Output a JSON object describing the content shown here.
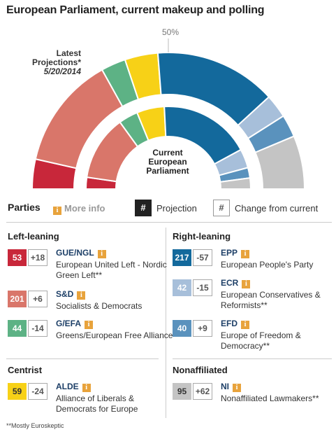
{
  "title": "European Parliament, current makeup and polling",
  "fifty_label": "50%",
  "latest_projection": {
    "line1": "Latest",
    "line2": "Projections*",
    "date": "5/20/2014"
  },
  "current_label": {
    "line1": "Current",
    "line2": "European",
    "line3": "Parliament"
  },
  "legend": {
    "parties_label": "Parties",
    "more_info": "More info",
    "info_glyph": "i",
    "projection_symbol": "#",
    "projection_label": "Projection",
    "change_symbol": "#",
    "change_label": "Change from current"
  },
  "sections": {
    "left": "Left-leaning",
    "right": "Right-leaning",
    "centrist": "Centrist",
    "nonaffiliated": "Nonaffiliated"
  },
  "footnote": "**Mostly Euroskeptic",
  "chart_data": {
    "type": "semicircle-parliament",
    "rings": [
      "Latest Projections",
      "Current European Parliament"
    ],
    "order": [
      "GUE/NGL",
      "S&D",
      "G/EFA",
      "ALDE",
      "EPP",
      "ECR",
      "EFD",
      "NI"
    ],
    "colors": {
      "GUE/NGL": "#c8273a",
      "S&D": "#d9766a",
      "G/EFA": "#5db285",
      "ALDE": "#f7d117",
      "EPP": "#13699c",
      "ECR": "#a7bfda",
      "EFD": "#5a92bd",
      "NI": "#c4c4c4"
    },
    "projection": {
      "GUE/NGL": 53,
      "S&D": 201,
      "G/EFA": 44,
      "ALDE": 59,
      "EPP": 217,
      "ECR": 42,
      "EFD": 40,
      "NI": 95
    },
    "change_from_current": {
      "GUE/NGL": "+18",
      "S&D": "+6",
      "G/EFA": "-14",
      "ALDE": "-24",
      "EPP": "-57",
      "ECR": "-15",
      "EFD": "+9",
      "NI": "+62"
    }
  },
  "parties": [
    {
      "id": "GUE/NGL",
      "projection": "53",
      "change": "+18",
      "abbr": "GUE/NGL",
      "full": "European United Left - Nordic Green Left**",
      "color": "#c8273a"
    },
    {
      "id": "S&D",
      "projection": "201",
      "change": "+6",
      "abbr": "S&D",
      "full": "Socialists & Democrats",
      "color": "#d9766a"
    },
    {
      "id": "G/EFA",
      "projection": "44",
      "change": "-14",
      "abbr": "G/EFA",
      "full": "Greens/European Free Alliance",
      "color": "#5db285"
    },
    {
      "id": "EPP",
      "projection": "217",
      "change": "-57",
      "abbr": "EPP",
      "full": "European People's Party",
      "color": "#13699c"
    },
    {
      "id": "ECR",
      "projection": "42",
      "change": "-15",
      "abbr": "ECR",
      "full": "European Conservatives & Reformists**",
      "color": "#a7bfda"
    },
    {
      "id": "EFD",
      "projection": "40",
      "change": "+9",
      "abbr": "EFD",
      "full": "Europe of Freedom & Democracy**",
      "color": "#5a92bd"
    },
    {
      "id": "ALDE",
      "projection": "59",
      "change": "-24",
      "abbr": "ALDE",
      "full": "Alliance of Liberals & Democrats for Europe",
      "color": "#f7d117"
    },
    {
      "id": "NI",
      "projection": "95",
      "change": "+62",
      "abbr": "NI",
      "full": "Nonaffiliated Lawmakers**",
      "color": "#c4c4c4"
    }
  ]
}
